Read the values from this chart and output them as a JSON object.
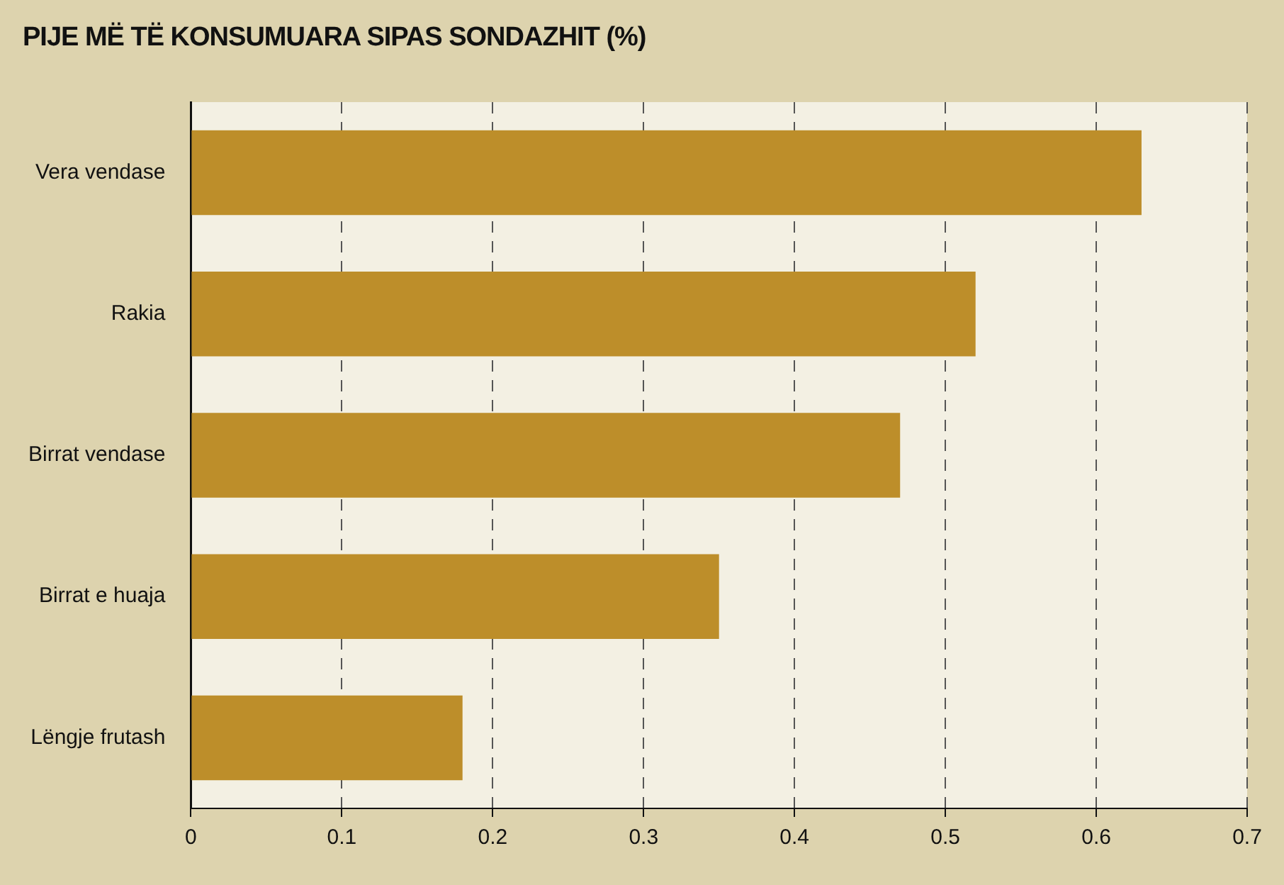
{
  "chart_data": {
    "type": "bar",
    "orientation": "horizontal",
    "title": "PIJE MË TË KONSUMUARA SIPAS SONDAZHIT (%)",
    "categories": [
      "Vera vendase",
      "Rakia",
      "Birrat vendase",
      "Birrat e huaja",
      "Lëngje frutash"
    ],
    "values": [
      0.63,
      0.52,
      0.47,
      0.35,
      0.18
    ],
    "color": "#bd8e2a",
    "xlim": [
      0,
      0.7
    ],
    "xticks": [
      0,
      0.1,
      0.2,
      0.3,
      0.4,
      0.5,
      0.6,
      0.7
    ],
    "grid": "x",
    "legend": false
  }
}
